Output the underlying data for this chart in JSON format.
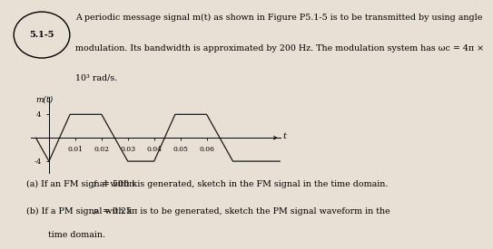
{
  "title_box": "5.1-5",
  "problem_text_line1": "A periodic message signal m(t) as shown in Figure P5.1-5 is to be transmitted by using angle",
  "problem_text_line2": "modulation. Its bandwidth is approximated by 200 Hz. The modulation system has ωc = 4π ×",
  "problem_text_line3": "10³ rad/s.",
  "ylabel": "m(t)",
  "xlabel": "t",
  "ytick_pos": 4,
  "ytick_neg": -4,
  "xtick_labels": [
    "0.01",
    "0.02",
    "0.03",
    "0.04",
    "0.05",
    "0.06"
  ],
  "xtick_values": [
    0.01,
    0.02,
    0.03,
    0.04,
    0.05,
    0.06
  ],
  "xlim": [
    -0.007,
    0.088
  ],
  "ylim": [
    -6.0,
    7.0
  ],
  "part_a_prefix": "(a) If an FM signal with k",
  "part_a_sub": "f",
  "part_a_suffix": " = 500π is generated, sketch in the FM signal in the time domain.",
  "part_b_prefix": "(b) If a PM signal with k",
  "part_b_sub": "p",
  "part_b_suffix": " = 0.25π is to be generated, sketch the PM signal waveform in the",
  "part_b_line2": "        time domain.",
  "signal_color": "#1a1a1a",
  "bg_color": "#e8e0d5",
  "waveform_points": [
    [
      -0.005,
      0
    ],
    [
      0.0,
      -4
    ],
    [
      0.008,
      4
    ],
    [
      0.02,
      4
    ],
    [
      0.03,
      -4
    ],
    [
      0.04,
      -4
    ],
    [
      0.048,
      4
    ],
    [
      0.06,
      4
    ],
    [
      0.07,
      -4
    ],
    [
      0.088,
      -4
    ]
  ]
}
